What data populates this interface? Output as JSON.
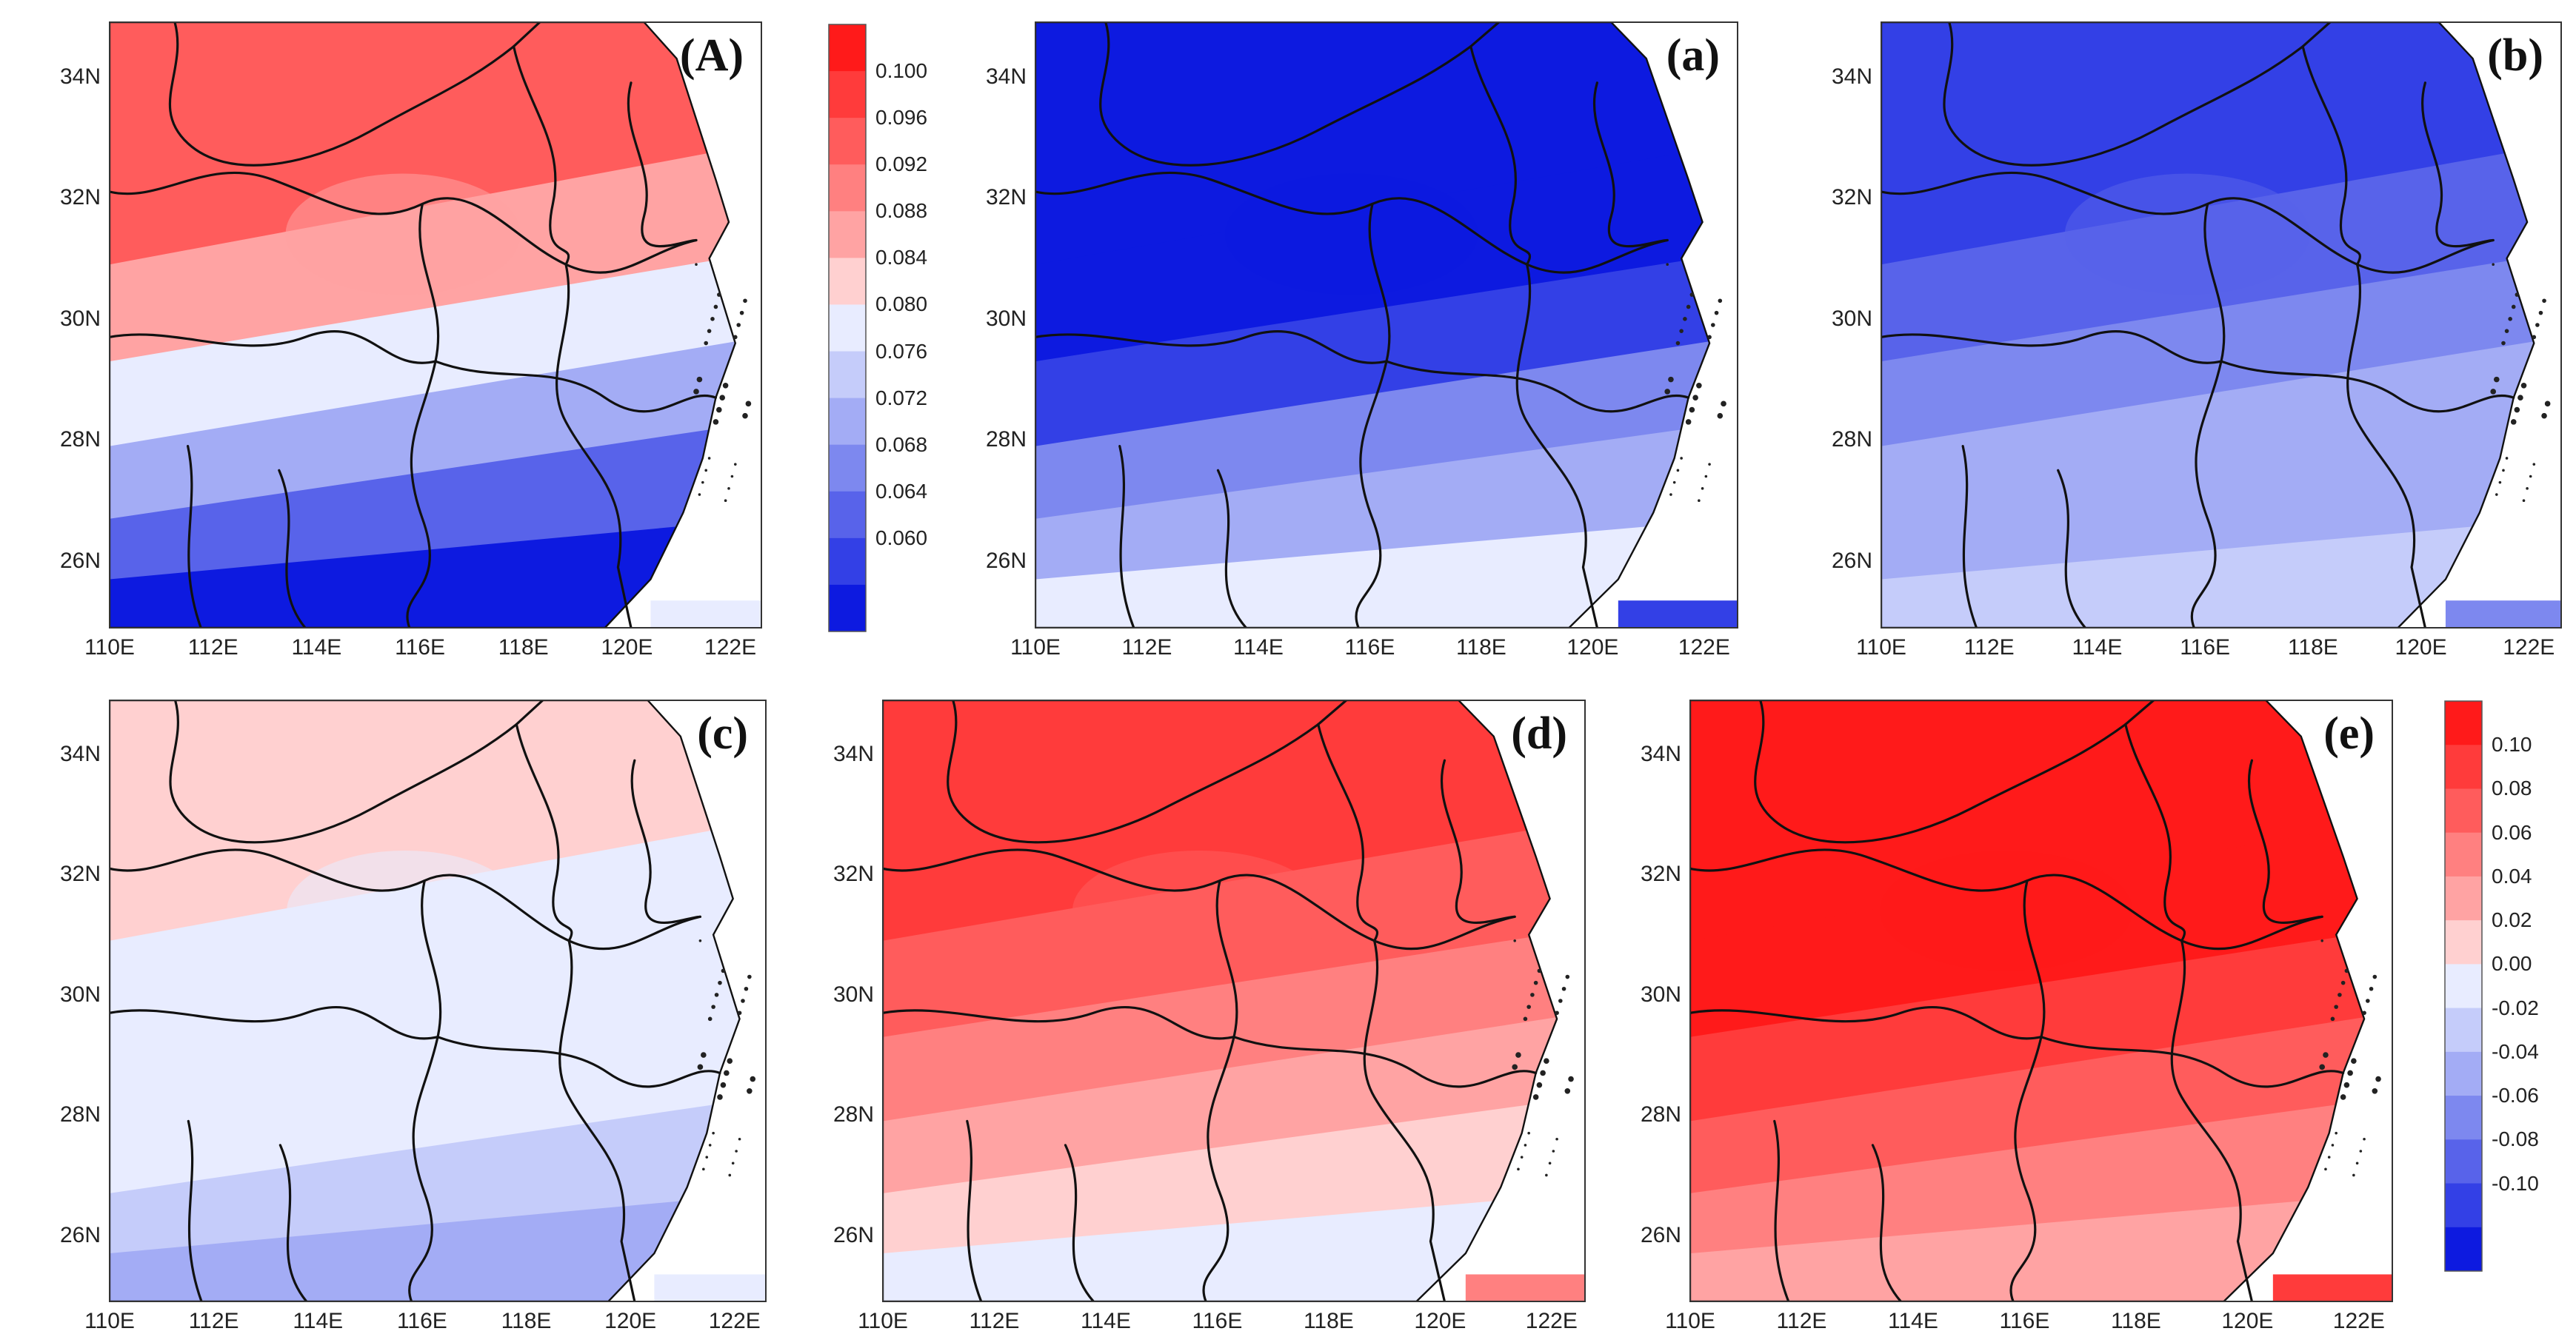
{
  "lat_ticks": [
    "34N",
    "32N",
    "30N",
    "28N",
    "26N"
  ],
  "lon_ticks": [
    "110E",
    "112E",
    "114E",
    "116E",
    "118E",
    "120E",
    "122E"
  ],
  "colorbar_top": {
    "ticks": [
      "0.100",
      "0.096",
      "0.092",
      "0.088",
      "0.084",
      "0.080",
      "0.076",
      "0.072",
      "0.068",
      "0.064",
      "0.060"
    ],
    "colors": [
      "#ff1a1a",
      "#ff3b3b",
      "#ff5c5c",
      "#ff8080",
      "#ffa3a3",
      "#ffd0d0",
      "#e8ecff",
      "#c5ccfa",
      "#a3acf5",
      "#7d88ef",
      "#5863ea",
      "#3340e6",
      "#0d1ae0"
    ]
  },
  "colorbar_bottom": {
    "ticks": [
      "0.10",
      "0.08",
      "0.06",
      "0.04",
      "0.02",
      "0.00",
      "-0.02",
      "-0.04",
      "-0.06",
      "-0.08",
      "-0.10"
    ],
    "colors": [
      "#ff1a1a",
      "#ff3b3b",
      "#ff5c5c",
      "#ff8080",
      "#ffa3a3",
      "#ffd0d0",
      "#e8ecff",
      "#c5ccfa",
      "#a3acf5",
      "#7d88ef",
      "#5863ea",
      "#3340e6",
      "#0d1ae0"
    ]
  },
  "panels": [
    {
      "id": "A",
      "label": "(A)",
      "colors": [
        "#ff5c5c",
        "#ffa3a3",
        "#e8ecff",
        "#a3acf5",
        "#5863ea",
        "#0d1ae0"
      ]
    },
    {
      "id": "a",
      "label": "(a)",
      "colors": [
        "#0d1ae0",
        "#0d1ae0",
        "#3340e6",
        "#7d88ef",
        "#a3acf5",
        "#e8ecff"
      ]
    },
    {
      "id": "b",
      "label": "(b)",
      "colors": [
        "#3340e6",
        "#5863ea",
        "#7d88ef",
        "#a3acf5",
        "#a3acf5",
        "#c5ccfa"
      ]
    },
    {
      "id": "c",
      "label": "(c)",
      "colors": [
        "#ffd0d0",
        "#e8ecff",
        "#e8ecff",
        "#e8ecff",
        "#c5ccfa",
        "#a3acf5"
      ]
    },
    {
      "id": "d",
      "label": "(d)",
      "colors": [
        "#ff3b3b",
        "#ff5c5c",
        "#ff8080",
        "#ffa3a3",
        "#ffd0d0",
        "#e8ecff"
      ]
    },
    {
      "id": "e",
      "label": "(e)",
      "colors": [
        "#ff1a1a",
        "#ff1a1a",
        "#ff3b3b",
        "#ff5c5c",
        "#ff8080",
        "#ffa3a3"
      ]
    }
  ]
}
